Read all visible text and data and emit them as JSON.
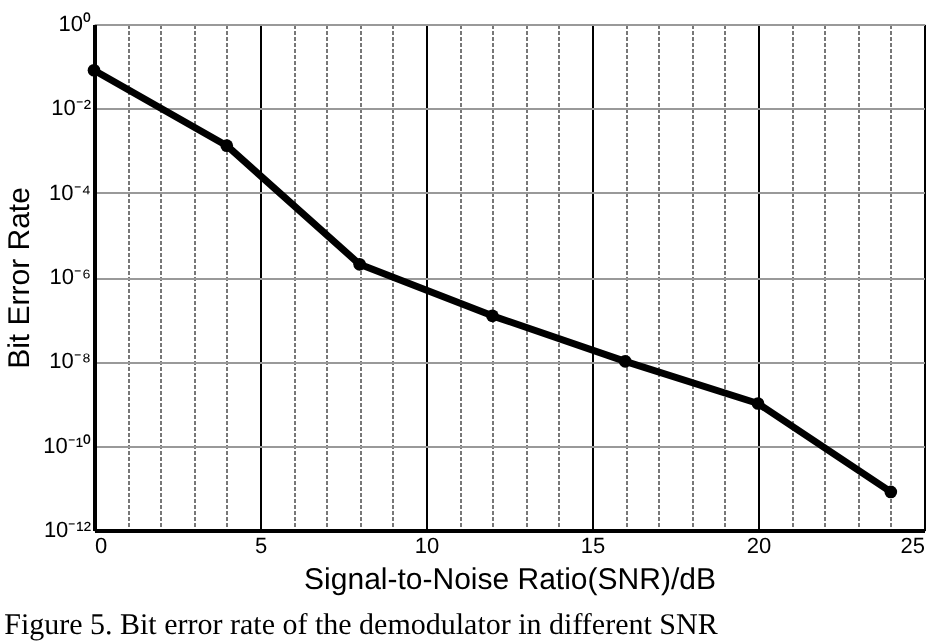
{
  "chart_data": {
    "type": "line",
    "xlabel": "Signal-to-Noise Ratio(SNR)/dB",
    "ylabel": "Bit Error Rate",
    "annotations": [
      "Figure 5.    Bit error rate of the demodulator in different SNR"
    ],
    "x": [
      0,
      4,
      8,
      12,
      16,
      20,
      24
    ],
    "series": [
      {
        "color": "#000000",
        "values": [
          0.08,
          0.0013,
          2e-06,
          1.2e-07,
          1e-08,
          1e-09,
          8e-12
        ]
      }
    ],
    "log": true,
    "marker": "circle",
    "line_style": "solid",
    "grid": true,
    "xlim": [
      0,
      25
    ],
    "xticks": [
      0,
      {
        "value": 1,
        "label": null
      },
      {
        "value": 2,
        "label": null
      },
      {
        "value": 3,
        "label": null
      },
      {
        "value": 4,
        "label": null
      },
      5,
      {
        "value": 6,
        "label": null
      },
      {
        "value": 7,
        "label": null
      },
      {
        "value": 8,
        "label": null
      },
      {
        "value": 9,
        "label": null
      },
      10,
      {
        "value": 11,
        "label": null
      },
      {
        "value": 12,
        "label": null
      },
      {
        "value": 13,
        "label": null
      },
      {
        "value": 14,
        "label": null
      },
      15,
      {
        "value": 16,
        "label": null
      },
      {
        "value": 17,
        "label": null
      },
      {
        "value": 18,
        "label": null
      },
      {
        "value": 19,
        "label": null
      },
      20,
      {
        "value": 21,
        "label": null
      },
      {
        "value": 22,
        "label": null
      },
      {
        "value": 23,
        "label": null
      },
      {
        "value": 24,
        "label": null
      },
      25
    ],
    "ylim": [
      1e-12,
      1
    ],
    "yticks": [
      {
        "value": 1e-12,
        "label": "10⁻¹²"
      },
      {
        "value": 1e-10,
        "label": "10⁻¹⁰"
      },
      {
        "value": 1e-08,
        "label": "10⁻⁸"
      },
      {
        "value": 1e-06,
        "label": "10⁻⁶"
      },
      {
        "value": 0.0001,
        "label": "10⁻⁴"
      },
      {
        "value": 0.01,
        "label": "10⁻²"
      },
      {
        "value": 1,
        "label": "10⁰"
      }
    ]
  }
}
